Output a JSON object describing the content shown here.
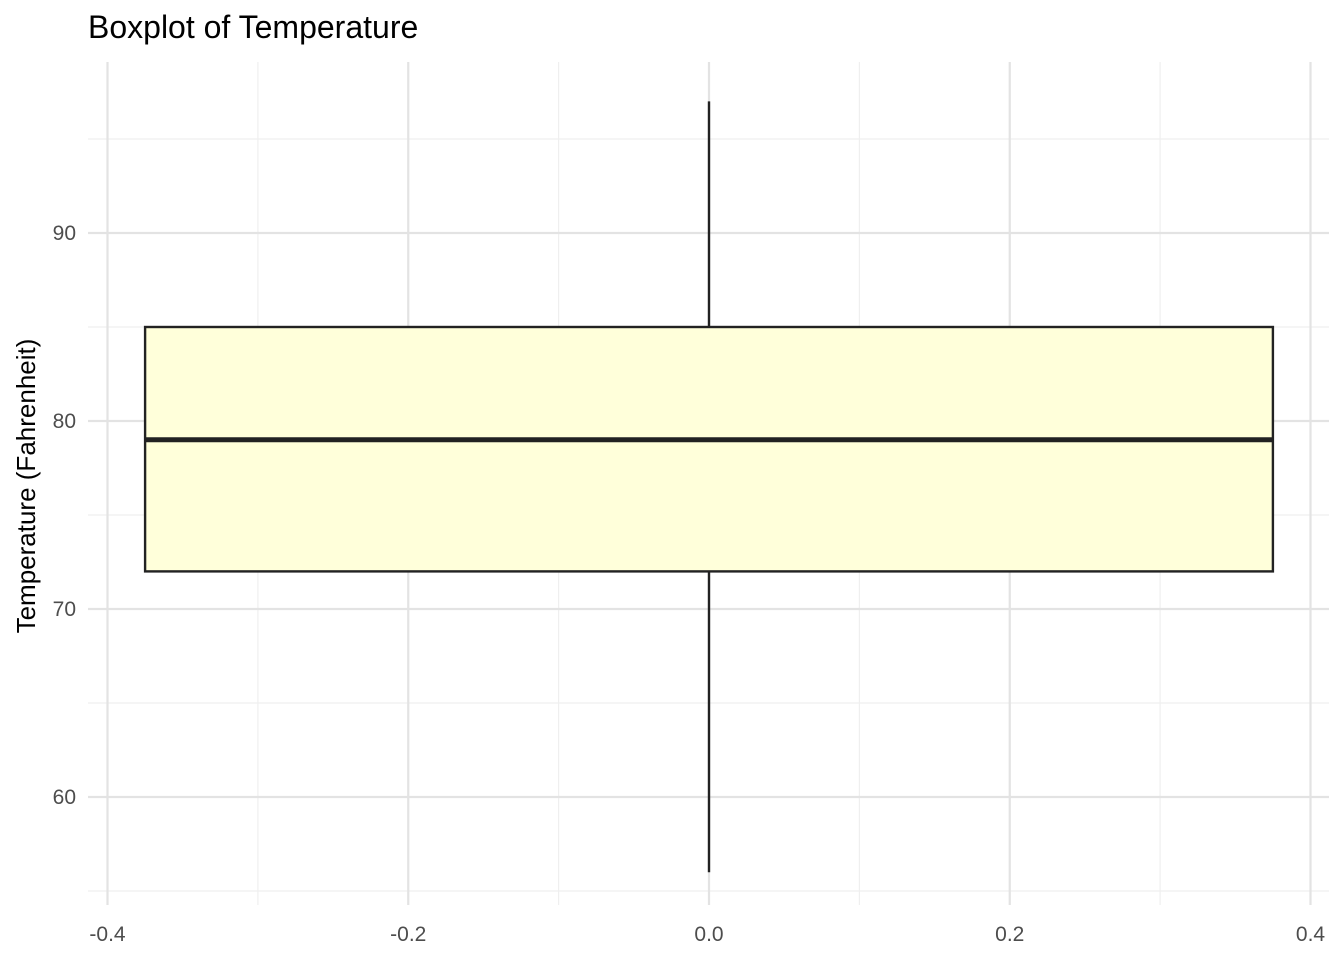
{
  "chart_data": {
    "type": "boxplot",
    "title": "Boxplot of Temperature",
    "xlabel": "",
    "ylabel": "Temperature (Fahrenheit)",
    "x_ticks": [
      "-0.4",
      "-0.2",
      "0.0",
      "0.2",
      "0.4"
    ],
    "y_ticks": [
      "60",
      "70",
      "80",
      "90"
    ],
    "xlim": [
      -0.4,
      0.4
    ],
    "ylim": [
      55,
      97
    ],
    "grid": true,
    "box": {
      "x_center": 0.0,
      "x_left": -0.375,
      "x_right": 0.375,
      "whisker_low": 56,
      "q1": 72,
      "median": 79,
      "q3": 85,
      "whisker_high": 97
    },
    "colors": {
      "box_fill": "#FFFFDA",
      "box_stroke": "#222222",
      "grid_major": "#E3E3E3",
      "grid_minor": "#EFEFEF"
    }
  }
}
